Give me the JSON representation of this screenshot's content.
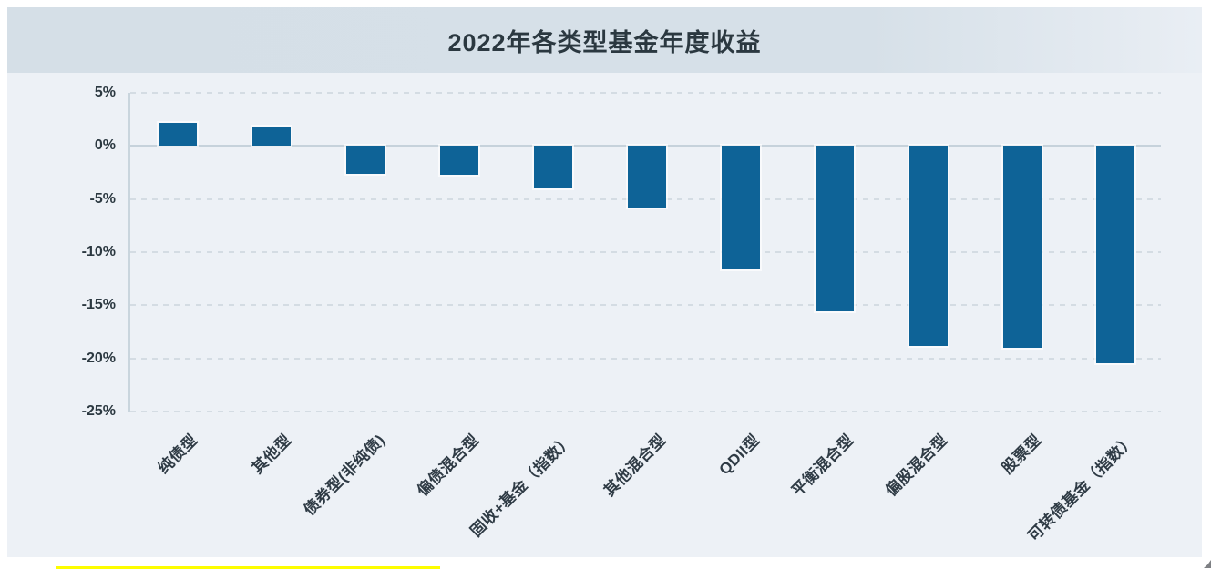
{
  "chart_data": {
    "type": "bar",
    "title": "2022年各类型基金年度收益",
    "categories": [
      "纯债型",
      "其他型",
      "债券型(非纯债)",
      "偏债混合型",
      "固收+基金（指数）",
      "其他混合型",
      "QDII型",
      "平衡混合型",
      "偏股混合型",
      "股票型",
      "可转债基金（指数）"
    ],
    "values": [
      2.2,
      1.8,
      -2.6,
      -2.7,
      -4.0,
      -5.8,
      -11.6,
      -15.6,
      -18.8,
      -19.0,
      -20.5
    ],
    "unit": "%",
    "ylim": [
      -25,
      5
    ],
    "ytick_step": 5,
    "ytick_labels": [
      "5%",
      "0%",
      "-5%",
      "-10%",
      "-15%",
      "-20%",
      "-25%"
    ],
    "xlabel": "",
    "ylabel": "",
    "legend": "none",
    "grid": "horizontal dashed gridlines with solid zero line",
    "x_tick_label_rotation_deg": 45,
    "colors": {
      "bar": "#0e6397",
      "plot_background": "#edf1f6",
      "title_band": "#d6e0e8",
      "gridline": "#d4dce3",
      "zero_line": "#c6d2db",
      "axis_text": "#2b3840",
      "highlight_strip": "#fdfd00"
    }
  }
}
